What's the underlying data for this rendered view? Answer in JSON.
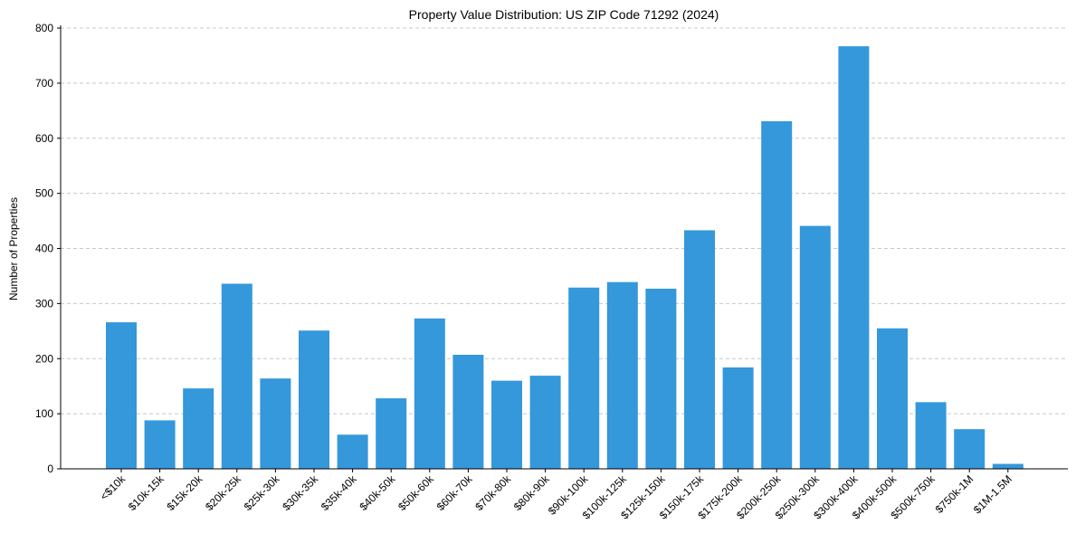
{
  "chart_data": {
    "type": "bar",
    "title": "Property Value Distribution: US ZIP Code 71292 (2024)",
    "xlabel": "",
    "ylabel": "Number of Properties",
    "categories": [
      "<$10k",
      "$10k-15k",
      "$15k-20k",
      "$20k-25k",
      "$25k-30k",
      "$30k-35k",
      "$35k-40k",
      "$40k-50k",
      "$50k-60k",
      "$60k-70k",
      "$70k-80k",
      "$80k-90k",
      "$90k-100k",
      "$100k-125k",
      "$125k-150k",
      "$150k-175k",
      "$175k-200k",
      "$200k-250k",
      "$250k-300k",
      "$300k-400k",
      "$400k-500k",
      "$500k-750k",
      "$750k-1M",
      "$1M-1.5M"
    ],
    "values": [
      266,
      88,
      146,
      336,
      164,
      251,
      62,
      128,
      273,
      207,
      160,
      169,
      329,
      339,
      327,
      433,
      184,
      631,
      441,
      767,
      255,
      121,
      72,
      9
    ],
    "ylim": [
      0,
      805
    ],
    "yticks": [
      0,
      100,
      200,
      300,
      400,
      500,
      600,
      700,
      800
    ],
    "grid": "y-dashed",
    "bar_color": "#3498db"
  }
}
